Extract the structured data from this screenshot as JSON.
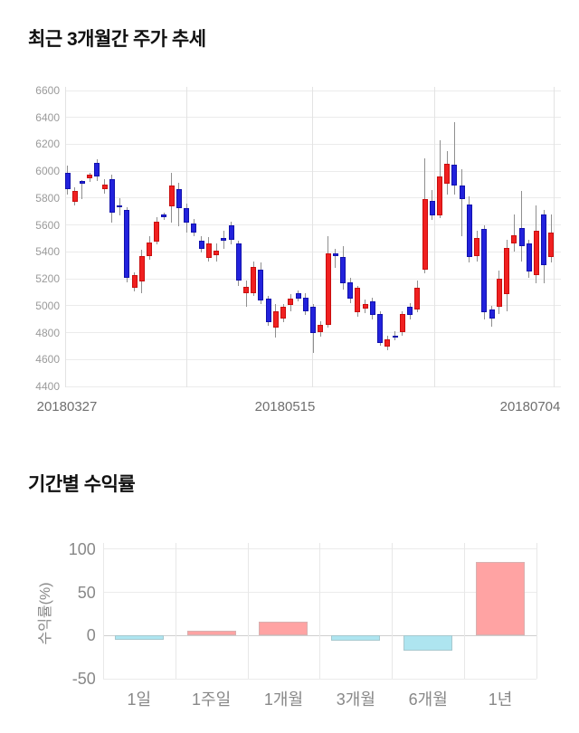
{
  "titles": {
    "price_section": "최근 3개월간 주가 추세",
    "returns_section": "기간별 수익률"
  },
  "chart_data": [
    {
      "type": "candlestick",
      "title": "최근 3개월간 주가 추세",
      "y_ticks": [
        6600,
        6400,
        6200,
        6000,
        5800,
        5600,
        5400,
        5200,
        5000,
        4800,
        4600,
        4400
      ],
      "ylim": [
        4400,
        6600
      ],
      "x_tick_labels": [
        "20180327",
        "20180515",
        "20180704"
      ],
      "grid": true,
      "up_color": "#f02020",
      "down_color": "#2222dc",
      "wick_color": "#8f8f8f",
      "ohlc_order": "open,high,low,close",
      "candles": [
        [
          5985,
          6040,
          5825,
          5865
        ],
        [
          5770,
          5880,
          5745,
          5850
        ],
        [
          5925,
          5935,
          5790,
          5905
        ],
        [
          5945,
          5990,
          5920,
          5975
        ],
        [
          6060,
          6090,
          5930,
          5960
        ],
        [
          5865,
          5940,
          5835,
          5900
        ],
        [
          5940,
          5975,
          5620,
          5690
        ],
        [
          5745,
          5800,
          5670,
          5735
        ],
        [
          5715,
          5735,
          5175,
          5210
        ],
        [
          5135,
          5250,
          5105,
          5225
        ],
        [
          5180,
          5415,
          5090,
          5370
        ],
        [
          5372,
          5520,
          5345,
          5473
        ],
        [
          5478,
          5657,
          5455,
          5624
        ],
        [
          5675,
          5690,
          5640,
          5655
        ],
        [
          5736,
          5985,
          5615,
          5893
        ],
        [
          5865,
          5915,
          5590,
          5725
        ],
        [
          5725,
          5760,
          5545,
          5615
        ],
        [
          5610,
          5645,
          5520,
          5545
        ],
        [
          5480,
          5515,
          5395,
          5420
        ],
        [
          5355,
          5510,
          5330,
          5460
        ],
        [
          5376,
          5460,
          5330,
          5410
        ],
        [
          5505,
          5560,
          5425,
          5480
        ],
        [
          5600,
          5625,
          5455,
          5490
        ],
        [
          5460,
          5480,
          5150,
          5185
        ],
        [
          5095,
          5185,
          4995,
          5140
        ],
        [
          5095,
          5330,
          5070,
          5285
        ],
        [
          5265,
          5320,
          5010,
          5040
        ],
        [
          5050,
          5075,
          4850,
          4880
        ],
        [
          4840,
          5010,
          4765,
          4960
        ],
        [
          4905,
          5015,
          4880,
          4990
        ],
        [
          5005,
          5085,
          4960,
          5050
        ],
        [
          5090,
          5110,
          5030,
          5055
        ],
        [
          5060,
          5095,
          4930,
          4960
        ],
        [
          4995,
          5010,
          4650,
          4795
        ],
        [
          4805,
          4885,
          4770,
          4860
        ],
        [
          4860,
          5515,
          4840,
          5390
        ],
        [
          5390,
          5420,
          5280,
          5370
        ],
        [
          5365,
          5445,
          5120,
          5170
        ],
        [
          5175,
          5210,
          5020,
          5050
        ],
        [
          4950,
          5150,
          4915,
          5130
        ],
        [
          4980,
          5045,
          4945,
          5015
        ],
        [
          5030,
          5060,
          4900,
          4930
        ],
        [
          4935,
          4960,
          4700,
          4725
        ],
        [
          4695,
          4775,
          4670,
          4750
        ],
        [
          4780,
          4810,
          4740,
          4768
        ],
        [
          4805,
          4960,
          4780,
          4940
        ],
        [
          4995,
          5020,
          4900,
          4930
        ],
        [
          4975,
          5185,
          4950,
          5130
        ],
        [
          5265,
          6095,
          5240,
          5790
        ],
        [
          5780,
          5860,
          5640,
          5670
        ],
        [
          5670,
          6230,
          5650,
          5960
        ],
        [
          5905,
          6150,
          5825,
          6055
        ],
        [
          6050,
          6365,
          5825,
          5895
        ],
        [
          5895,
          6015,
          5520,
          5790
        ],
        [
          5750,
          5810,
          5320,
          5365
        ],
        [
          5370,
          5555,
          5325,
          5505
        ],
        [
          5570,
          5600,
          4895,
          4950
        ],
        [
          4970,
          5000,
          4845,
          4905
        ],
        [
          4990,
          5260,
          4935,
          5200
        ],
        [
          5085,
          5490,
          4960,
          5430
        ],
        [
          5460,
          5680,
          5400,
          5525
        ],
        [
          5580,
          5850,
          5330,
          5445
        ],
        [
          5460,
          5490,
          5210,
          5255
        ],
        [
          5230,
          5745,
          5165,
          5555
        ],
        [
          5675,
          5715,
          5165,
          5300
        ],
        [
          5365,
          5680,
          5320,
          5545
        ]
      ]
    },
    {
      "type": "bar",
      "title": "기간별 수익률",
      "categories": [
        "1일",
        "1주일",
        "1개월",
        "3개월",
        "6개월",
        "1년"
      ],
      "values": [
        -5,
        6,
        16,
        -6,
        -18,
        85
      ],
      "ylabel": "수익률(%)",
      "y_ticks": [
        100,
        50,
        0,
        -50
      ],
      "ylim": [
        -50,
        100
      ],
      "grid": true,
      "positive_color": "#ffa3a3",
      "negative_color": "#aee5f0"
    }
  ]
}
